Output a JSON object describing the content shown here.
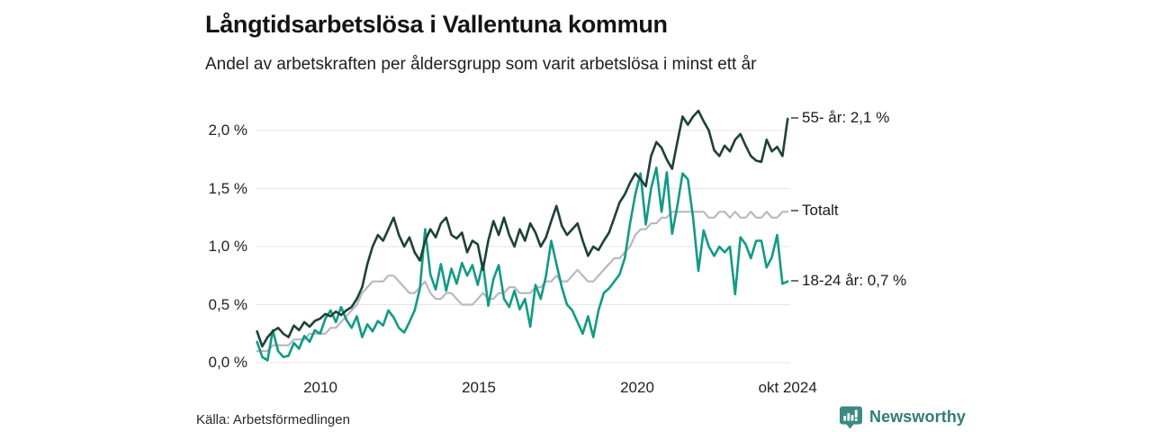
{
  "chart_data": {
    "type": "line",
    "title": "Långtidsarbetslösa i Vallentuna kommun",
    "subtitle": "Andel av arbetskraften per åldersgrupp som varit arbetslösa i minst ett år",
    "source": "Källa: Arbetsförmedlingen",
    "unit": "%",
    "grid": "horizontal",
    "legend_position": "right-end-labels",
    "x_range": {
      "start": 2008.0,
      "end": 2024.75,
      "end_label_period": "okt 2024"
    },
    "ylim": [
      0,
      2.27
    ],
    "y_ticks": [
      {
        "label": "0,0 %",
        "value": 0.0
      },
      {
        "label": "0,5 %",
        "value": 0.5
      },
      {
        "label": "1,0 %",
        "value": 1.0
      },
      {
        "label": "1,5 %",
        "value": 1.5
      },
      {
        "label": "2,0 %",
        "value": 2.0
      }
    ],
    "x_ticks": [
      {
        "label": "2010",
        "year": 2010
      },
      {
        "label": "2015",
        "year": 2015
      },
      {
        "label": "2020",
        "year": 2020
      },
      {
        "label": "okt 2024",
        "year": 2024.75
      }
    ],
    "series": [
      {
        "name": "Totalt",
        "end_label": "Totalt",
        "latest_value": 1.3,
        "color": "#b8b8c2",
        "stroke_width": 2.2,
        "values": [
          0.1,
          0.1,
          0.1,
          0.15,
          0.15,
          0.15,
          0.15,
          0.2,
          0.2,
          0.2,
          0.25,
          0.25,
          0.25,
          0.25,
          0.3,
          0.3,
          0.35,
          0.4,
          0.45,
          0.5,
          0.6,
          0.65,
          0.7,
          0.7,
          0.7,
          0.75,
          0.75,
          0.7,
          0.65,
          0.6,
          0.6,
          0.65,
          0.7,
          0.6,
          0.55,
          0.55,
          0.6,
          0.6,
          0.55,
          0.5,
          0.5,
          0.5,
          0.55,
          0.6,
          0.55,
          0.55,
          0.6,
          0.6,
          0.65,
          0.65,
          0.6,
          0.6,
          0.6,
          0.65,
          0.65,
          0.7,
          0.7,
          0.75,
          0.7,
          0.7,
          0.75,
          0.8,
          0.75,
          0.7,
          0.7,
          0.75,
          0.8,
          0.85,
          0.9,
          0.9,
          0.95,
          1.0,
          1.1,
          1.15,
          1.15,
          1.2,
          1.2,
          1.25,
          1.25,
          1.3,
          1.3,
          1.3,
          1.3,
          1.3,
          1.3,
          1.3,
          1.25,
          1.25,
          1.3,
          1.3,
          1.25,
          1.3,
          1.25,
          1.25,
          1.3,
          1.25,
          1.25,
          1.3,
          1.25,
          1.25,
          1.3,
          1.3
        ]
      },
      {
        "name": "18-24 år",
        "end_label": "18-24 år: 0,7 %",
        "latest_value": 0.7,
        "color": "#129a86",
        "stroke_width": 2.6,
        "values": [
          0.18,
          0.05,
          0.02,
          0.28,
          0.1,
          0.05,
          0.06,
          0.17,
          0.12,
          0.23,
          0.18,
          0.28,
          0.25,
          0.38,
          0.45,
          0.35,
          0.48,
          0.37,
          0.3,
          0.4,
          0.22,
          0.33,
          0.27,
          0.36,
          0.32,
          0.45,
          0.39,
          0.3,
          0.26,
          0.35,
          0.45,
          0.64,
          1.15,
          0.76,
          0.63,
          0.85,
          0.62,
          0.81,
          0.68,
          0.86,
          0.75,
          0.84,
          0.67,
          0.86,
          0.49,
          0.72,
          0.84,
          0.55,
          0.48,
          0.62,
          0.46,
          0.55,
          0.31,
          0.67,
          0.55,
          0.75,
          1.05,
          0.85,
          0.65,
          0.5,
          0.45,
          0.35,
          0.25,
          0.4,
          0.22,
          0.45,
          0.6,
          0.64,
          0.7,
          0.76,
          0.9,
          1.2,
          1.45,
          1.63,
          1.19,
          1.5,
          1.68,
          1.3,
          1.64,
          1.11,
          1.35,
          1.63,
          1.58,
          1.25,
          0.79,
          1.14,
          1.0,
          0.92,
          1.0,
          0.95,
          1.0,
          0.59,
          1.08,
          1.02,
          0.9,
          1.05,
          1.05,
          0.82,
          0.91,
          1.1,
          0.68,
          0.7
        ]
      },
      {
        "name": "55- år",
        "end_label": "55- år: 2,1 %",
        "latest_value": 2.1,
        "color": "#1e4138",
        "stroke_width": 2.6,
        "values": [
          0.27,
          0.14,
          0.22,
          0.27,
          0.3,
          0.25,
          0.22,
          0.32,
          0.28,
          0.35,
          0.31,
          0.36,
          0.38,
          0.42,
          0.4,
          0.44,
          0.41,
          0.45,
          0.48,
          0.55,
          0.65,
          0.85,
          1.0,
          1.1,
          1.05,
          1.15,
          1.25,
          1.1,
          1.0,
          1.08,
          0.95,
          0.88,
          1.05,
          1.15,
          1.08,
          1.2,
          1.25,
          1.1,
          1.07,
          1.12,
          0.95,
          1.05,
          1.02,
          0.8,
          1.05,
          1.22,
          1.1,
          1.25,
          1.1,
          1.0,
          1.15,
          1.05,
          1.2,
          1.12,
          1.0,
          1.08,
          1.22,
          1.35,
          1.18,
          1.1,
          1.15,
          1.2,
          1.05,
          0.92,
          1.0,
          0.97,
          1.05,
          1.12,
          1.25,
          1.38,
          1.45,
          1.55,
          1.63,
          1.58,
          1.52,
          1.78,
          1.9,
          1.85,
          1.75,
          1.67,
          1.9,
          2.12,
          2.05,
          2.12,
          2.17,
          2.08,
          2.0,
          1.83,
          1.78,
          1.87,
          1.82,
          1.92,
          1.97,
          1.87,
          1.78,
          1.74,
          1.73,
          1.92,
          1.82,
          1.86,
          1.78,
          2.1
        ]
      }
    ]
  },
  "branding": {
    "name": "Newsworthy",
    "text_color": "#337c74",
    "icon_color": "#3a8c83",
    "icon": "bar-chart-speech-bubble"
  }
}
